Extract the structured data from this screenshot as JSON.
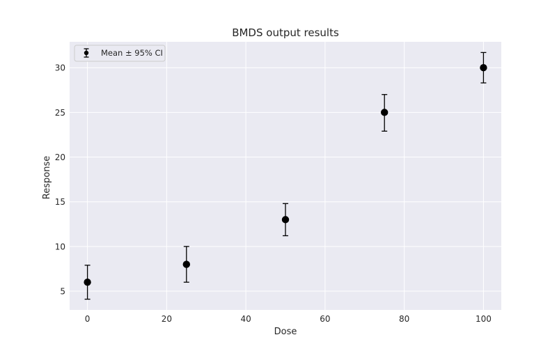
{
  "chart_data": {
    "type": "scatter",
    "title": "BMDS output results",
    "xlabel": "Dose",
    "ylabel": "Response",
    "xlim": [
      -4.5,
      104.5
    ],
    "ylim": [
      2.9,
      32.9
    ],
    "xticks": [
      0,
      20,
      40,
      60,
      80,
      100
    ],
    "yticks": [
      5,
      10,
      15,
      20,
      25,
      30
    ],
    "grid": true,
    "legend": {
      "position": "top-left",
      "entries": [
        "Mean ± 95% CI"
      ]
    },
    "series": [
      {
        "name": "Mean ± 95% CI",
        "x": [
          0,
          25,
          50,
          75,
          100
        ],
        "y": [
          6,
          8,
          13,
          25,
          30
        ],
        "ci_lower": [
          4.1,
          6.0,
          11.2,
          22.9,
          28.3
        ],
        "ci_upper": [
          7.9,
          10.0,
          14.8,
          27.0,
          31.7
        ]
      }
    ],
    "colors": {
      "plot_background": "#eaeaf2",
      "grid": "#ffffff",
      "marker": "#000000",
      "text": "#262626"
    }
  }
}
